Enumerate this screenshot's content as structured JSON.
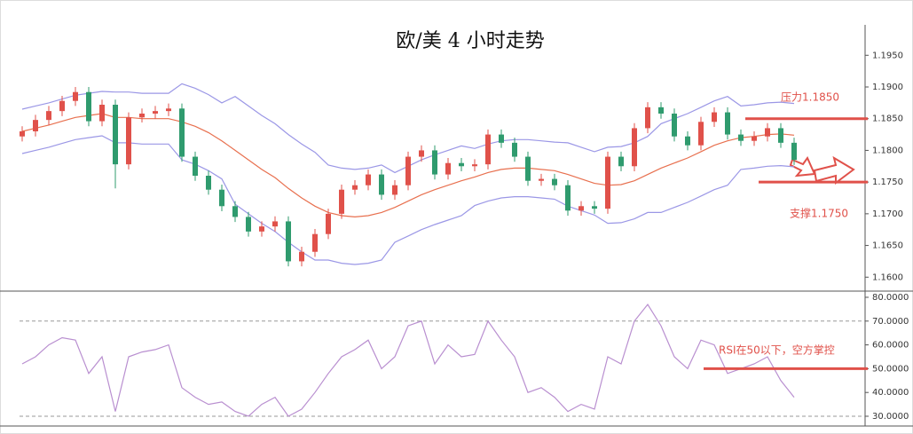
{
  "chart_data": [
    {
      "type": "candlestick",
      "title": "欧/美 4 小时走势",
      "categories": [
        null,
        null,
        null,
        null,
        null,
        null,
        null,
        null,
        null,
        null,
        null,
        null,
        null,
        null,
        null,
        null,
        null,
        null,
        null,
        null,
        null,
        null,
        null,
        null,
        null,
        null,
        null,
        null,
        null,
        null,
        null,
        null,
        null,
        null,
        null,
        null,
        null,
        null,
        null,
        null,
        null,
        null,
        null,
        null,
        null,
        null,
        null,
        null,
        null,
        null,
        null,
        null,
        null,
        null,
        null,
        null,
        null,
        null,
        null
      ],
      "open": [
        1.1822,
        1.183,
        1.1848,
        1.1862,
        1.1878,
        1.1892,
        1.1846,
        1.1872,
        1.1778,
        1.1852,
        1.1858,
        1.1862,
        1.1866,
        1.179,
        1.176,
        1.1738,
        1.1712,
        1.1695,
        1.1672,
        1.168,
        1.1688,
        1.1625,
        1.164,
        1.1668,
        1.17,
        1.1738,
        1.1745,
        1.1762,
        1.173,
        1.1745,
        1.179,
        1.18,
        1.1762,
        1.178,
        1.1775,
        1.1778,
        1.1825,
        1.1812,
        1.179,
        1.1752,
        1.1755,
        1.1745,
        1.1705,
        1.1712,
        1.1708,
        1.179,
        1.1775,
        1.1835,
        1.1868,
        1.1858,
        1.1822,
        1.1808,
        1.1845,
        1.186,
        1.1825,
        1.1815,
        1.1822,
        1.1835,
        1.1812
      ],
      "high": [
        1.1838,
        1.1856,
        1.187,
        1.1886,
        1.19,
        1.19,
        1.188,
        1.188,
        1.186,
        1.1866,
        1.187,
        1.1874,
        1.1874,
        1.1798,
        1.1768,
        1.1746,
        1.172,
        1.1703,
        1.1688,
        1.1696,
        1.1696,
        1.1648,
        1.1676,
        1.1708,
        1.1746,
        1.1753,
        1.177,
        1.177,
        1.1753,
        1.1798,
        1.1808,
        1.1808,
        1.1788,
        1.1788,
        1.1786,
        1.1833,
        1.1833,
        1.182,
        1.1798,
        1.1763,
        1.1763,
        1.1753,
        1.172,
        1.172,
        1.1798,
        1.1798,
        1.1843,
        1.1876,
        1.1876,
        1.1866,
        1.183,
        1.1853,
        1.1868,
        1.1868,
        1.1833,
        1.183,
        1.1843,
        1.1843,
        1.182
      ],
      "low": [
        1.1814,
        1.1822,
        1.184,
        1.1854,
        1.187,
        1.1838,
        1.1838,
        1.174,
        1.177,
        1.1844,
        1.185,
        1.1854,
        1.1782,
        1.1752,
        1.173,
        1.1704,
        1.1687,
        1.1664,
        1.1664,
        1.1672,
        1.1617,
        1.1617,
        1.1632,
        1.166,
        1.1692,
        1.173,
        1.1737,
        1.1722,
        1.1722,
        1.1737,
        1.1782,
        1.1754,
        1.1754,
        1.1767,
        1.1767,
        1.177,
        1.1804,
        1.1782,
        1.1744,
        1.1744,
        1.1737,
        1.1697,
        1.1697,
        1.17,
        1.17,
        1.1767,
        1.1767,
        1.1827,
        1.185,
        1.1814,
        1.18,
        1.18,
        1.1837,
        1.1817,
        1.1807,
        1.1807,
        1.1814,
        1.1804,
        1.1777
      ],
      "close": [
        1.183,
        1.1848,
        1.1862,
        1.1878,
        1.1892,
        1.1846,
        1.1872,
        1.1778,
        1.1852,
        1.1858,
        1.1862,
        1.1866,
        1.179,
        1.176,
        1.1738,
        1.1712,
        1.1695,
        1.1672,
        1.168,
        1.1688,
        1.1625,
        1.164,
        1.1668,
        1.17,
        1.1738,
        1.1745,
        1.1762,
        1.173,
        1.1745,
        1.179,
        1.18,
        1.1762,
        1.178,
        1.1775,
        1.1778,
        1.1825,
        1.1812,
        1.179,
        1.1752,
        1.1755,
        1.1745,
        1.1705,
        1.1712,
        1.1708,
        1.179,
        1.1775,
        1.1835,
        1.1868,
        1.1858,
        1.1822,
        1.1808,
        1.1845,
        1.186,
        1.1825,
        1.1815,
        1.1822,
        1.1835,
        1.1812,
        1.1785
      ],
      "up_color": "#e0514a",
      "down_color": "#2f9b6e",
      "overlays": [
        {
          "color": "#9b97e6",
          "values": [
            1.1865,
            1.187,
            1.1875,
            1.1881,
            1.1887,
            1.189,
            1.1893,
            1.1892,
            1.1892,
            1.189,
            1.189,
            1.189,
            1.1905,
            1.1898,
            1.1888,
            1.1875,
            1.1885,
            1.187,
            1.1855,
            1.1842,
            1.1825,
            1.181,
            1.1797,
            1.1777,
            1.1772,
            1.177,
            1.1772,
            1.1777,
            1.1765,
            1.1775,
            1.1785,
            1.1793,
            1.18,
            1.1807,
            1.1803,
            1.181,
            1.1815,
            1.1817,
            1.1817,
            1.1815,
            1.1813,
            1.1812,
            1.1805,
            1.1798,
            1.1805,
            1.1806,
            1.1812,
            1.1822,
            1.1842,
            1.185,
            1.1858,
            1.1868,
            1.1878,
            1.1885,
            1.187,
            1.1872,
            1.1875,
            1.1876,
            1.1874
          ]
        },
        {
          "color": "#e8704f",
          "values": [
            1.183,
            1.1835,
            1.184,
            1.1846,
            1.1852,
            1.1855,
            1.1858,
            1.1852,
            1.1852,
            1.185,
            1.185,
            1.185,
            1.1845,
            1.1838,
            1.1828,
            1.1815,
            1.18,
            1.1785,
            1.177,
            1.1757,
            1.174,
            1.1725,
            1.1712,
            1.1702,
            1.1697,
            1.1695,
            1.1697,
            1.1702,
            1.171,
            1.172,
            1.173,
            1.1738,
            1.1745,
            1.1752,
            1.1758,
            1.1765,
            1.177,
            1.1772,
            1.1772,
            1.177,
            1.1768,
            1.1762,
            1.1755,
            1.1748,
            1.1745,
            1.1746,
            1.1752,
            1.1762,
            1.1772,
            1.178,
            1.1788,
            1.1798,
            1.1808,
            1.1815,
            1.182,
            1.1822,
            1.1825,
            1.1826,
            1.1824
          ]
        },
        {
          "color": "#9b97e6",
          "values": [
            1.1795,
            1.18,
            1.1805,
            1.1811,
            1.1817,
            1.182,
            1.1823,
            1.1812,
            1.1812,
            1.181,
            1.181,
            1.181,
            1.1785,
            1.1778,
            1.1768,
            1.1755,
            1.1715,
            1.17,
            1.1685,
            1.1672,
            1.1655,
            1.164,
            1.1627,
            1.1627,
            1.1622,
            1.162,
            1.1622,
            1.1627,
            1.1655,
            1.1665,
            1.1675,
            1.1683,
            1.169,
            1.1697,
            1.1713,
            1.172,
            1.1725,
            1.1727,
            1.1727,
            1.1725,
            1.1723,
            1.1712,
            1.1705,
            1.1698,
            1.1685,
            1.1686,
            1.1692,
            1.1702,
            1.1702,
            1.171,
            1.1718,
            1.1728,
            1.1738,
            1.1745,
            1.177,
            1.1772,
            1.1775,
            1.1776,
            1.1774
          ]
        }
      ],
      "ylim": [
        1.1578,
        1.1998
      ],
      "yticks": [
        {
          "value": 1.16,
          "label": "1.1600"
        },
        {
          "value": 1.165,
          "label": "1.1650"
        },
        {
          "value": 1.17,
          "label": "1.1700"
        },
        {
          "value": 1.175,
          "label": "1.1750"
        },
        {
          "value": 1.18,
          "label": "1.1800"
        },
        {
          "value": 1.185,
          "label": "1.1850"
        },
        {
          "value": 1.19,
          "label": "1.1900"
        },
        {
          "value": 1.195,
          "label": "1.1950"
        }
      ],
      "annotations": [
        {
          "text": "压力1.1850",
          "value": 1.185,
          "color": "#e0514a"
        },
        {
          "text": "支撑1.1750",
          "value": 1.175,
          "color": "#e0514a"
        }
      ]
    },
    {
      "type": "line",
      "categories": [
        null,
        null,
        null,
        null,
        null,
        null,
        null,
        null,
        null,
        null,
        null,
        null,
        null,
        null,
        null,
        null,
        null,
        null,
        null,
        null,
        null,
        null,
        null,
        null,
        null,
        null,
        null,
        null,
        null,
        null,
        null,
        null,
        null,
        null,
        null,
        null,
        null,
        null,
        null,
        null,
        null,
        null,
        null,
        null,
        null,
        null,
        null,
        null,
        null,
        null,
        null,
        null,
        null,
        null,
        null,
        null,
        null,
        null,
        null
      ],
      "values": [
        52,
        55,
        60,
        63,
        62,
        48,
        55,
        32,
        55,
        57,
        58,
        60,
        42,
        38,
        35,
        36,
        32,
        30,
        35,
        38,
        30,
        33,
        40,
        48,
        55,
        58,
        62,
        50,
        55,
        68,
        70,
        52,
        60,
        55,
        56,
        70,
        62,
        55,
        40,
        42,
        38,
        32,
        35,
        33,
        55,
        52,
        70,
        77,
        68,
        55,
        50,
        62,
        60,
        48,
        50,
        52,
        55,
        45,
        38
      ],
      "color": "#b98fd0",
      "ylim": [
        25.9,
        82.6
      ],
      "yticks": [
        {
          "value": 30,
          "label": "30.0000"
        },
        {
          "value": 40,
          "label": "40.0000"
        },
        {
          "value": 50,
          "label": "50.0000"
        },
        {
          "value": 60,
          "label": "60.0000"
        },
        {
          "value": 70,
          "label": "70.0000"
        },
        {
          "value": 80,
          "label": "80.0000"
        }
      ],
      "dashed_levels": [
        70,
        30
      ],
      "annotations": [
        {
          "text": "RSI在50以下，空方掌控",
          "value": 50,
          "color": "#e0514a"
        }
      ]
    }
  ]
}
